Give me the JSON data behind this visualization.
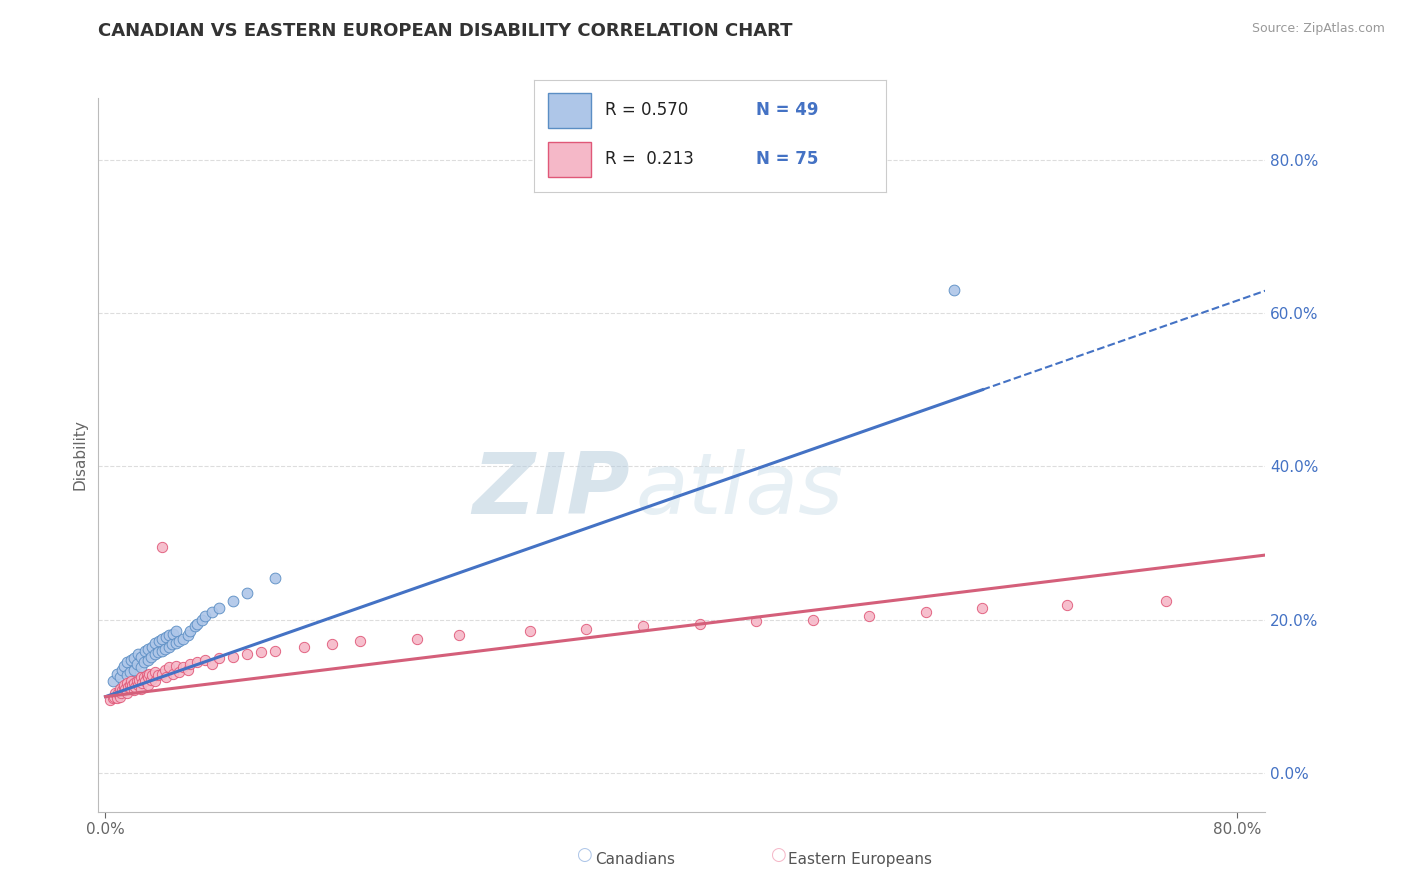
{
  "title": "CANADIAN VS EASTERN EUROPEAN DISABILITY CORRELATION CHART",
  "source": "Source: ZipAtlas.com",
  "ylabel": "Disability",
  "xlim": [
    -0.005,
    0.82
  ],
  "ylim": [
    -0.05,
    0.88
  ],
  "right_yticks": [
    0.0,
    0.2,
    0.4,
    0.6,
    0.8
  ],
  "right_yticklabels": [
    "0.0%",
    "20.0%",
    "40.0%",
    "60.0%",
    "80.0%"
  ],
  "xtick_vals": [
    0.0,
    0.8
  ],
  "xticklabels": [
    "0.0%",
    "80.0%"
  ],
  "color_canadian_fill": "#aec6e8",
  "color_canadian_edge": "#5b8ec4",
  "color_eastern_fill": "#f5b8c8",
  "color_eastern_edge": "#e05878",
  "line_color_canadian": "#4472c4",
  "line_color_eastern": "#d45f7a",
  "watermark_zip": "ZIP",
  "watermark_atlas": "atlas",
  "legend_r1": "R = 0.570",
  "legend_n1": "N = 49",
  "legend_r2": "R =  0.213",
  "legend_n2": "N = 75",
  "legend_label1": "Canadians",
  "legend_label2": "Eastern Europeans",
  "canadians_x": [
    0.005,
    0.008,
    0.01,
    0.012,
    0.013,
    0.015,
    0.015,
    0.017,
    0.018,
    0.02,
    0.02,
    0.022,
    0.023,
    0.025,
    0.025,
    0.027,
    0.028,
    0.03,
    0.03,
    0.032,
    0.033,
    0.035,
    0.035,
    0.037,
    0.038,
    0.04,
    0.04,
    0.042,
    0.043,
    0.045,
    0.045,
    0.047,
    0.048,
    0.05,
    0.05,
    0.052,
    0.055,
    0.058,
    0.06,
    0.063,
    0.065,
    0.068,
    0.07,
    0.075,
    0.08,
    0.09,
    0.1,
    0.12,
    0.6
  ],
  "canadians_y": [
    0.12,
    0.13,
    0.125,
    0.135,
    0.14,
    0.128,
    0.145,
    0.132,
    0.148,
    0.135,
    0.15,
    0.142,
    0.155,
    0.138,
    0.152,
    0.145,
    0.16,
    0.148,
    0.162,
    0.152,
    0.165,
    0.155,
    0.17,
    0.158,
    0.172,
    0.16,
    0.175,
    0.162,
    0.178,
    0.165,
    0.18,
    0.168,
    0.182,
    0.17,
    0.185,
    0.172,
    0.175,
    0.18,
    0.185,
    0.192,
    0.195,
    0.2,
    0.205,
    0.21,
    0.215,
    0.225,
    0.235,
    0.255,
    0.63
  ],
  "eastern_x": [
    0.003,
    0.005,
    0.006,
    0.007,
    0.008,
    0.009,
    0.01,
    0.01,
    0.011,
    0.012,
    0.013,
    0.013,
    0.014,
    0.015,
    0.015,
    0.016,
    0.017,
    0.018,
    0.018,
    0.019,
    0.02,
    0.02,
    0.021,
    0.022,
    0.023,
    0.024,
    0.025,
    0.025,
    0.026,
    0.027,
    0.028,
    0.029,
    0.03,
    0.03,
    0.031,
    0.032,
    0.033,
    0.035,
    0.035,
    0.037,
    0.04,
    0.04,
    0.042,
    0.043,
    0.045,
    0.048,
    0.05,
    0.052,
    0.055,
    0.058,
    0.06,
    0.065,
    0.07,
    0.075,
    0.08,
    0.09,
    0.1,
    0.11,
    0.12,
    0.14,
    0.16,
    0.18,
    0.22,
    0.25,
    0.3,
    0.34,
    0.38,
    0.42,
    0.46,
    0.5,
    0.54,
    0.58,
    0.62,
    0.68,
    0.75
  ],
  "eastern_y": [
    0.095,
    0.098,
    0.1,
    0.105,
    0.098,
    0.105,
    0.1,
    0.11,
    0.105,
    0.108,
    0.112,
    0.115,
    0.11,
    0.105,
    0.118,
    0.112,
    0.115,
    0.11,
    0.12,
    0.115,
    0.108,
    0.118,
    0.112,
    0.12,
    0.115,
    0.122,
    0.11,
    0.125,
    0.118,
    0.125,
    0.12,
    0.128,
    0.115,
    0.125,
    0.13,
    0.122,
    0.128,
    0.12,
    0.132,
    0.128,
    0.13,
    0.295,
    0.135,
    0.125,
    0.138,
    0.13,
    0.14,
    0.132,
    0.138,
    0.135,
    0.142,
    0.145,
    0.148,
    0.142,
    0.15,
    0.152,
    0.155,
    0.158,
    0.16,
    0.165,
    0.168,
    0.172,
    0.175,
    0.18,
    0.185,
    0.188,
    0.192,
    0.195,
    0.198,
    0.2,
    0.205,
    0.21,
    0.215,
    0.22,
    0.225
  ]
}
